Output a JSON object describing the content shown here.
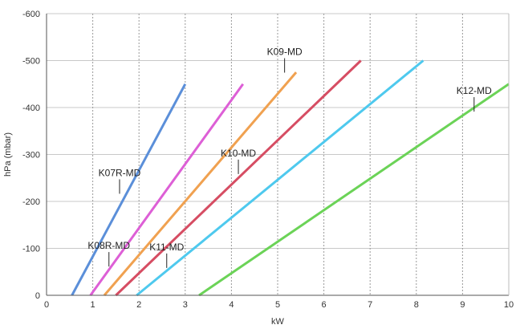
{
  "chart_data": {
    "type": "line",
    "title": "",
    "xlabel": "kW",
    "ylabel": "hPa (mbar)",
    "xlim": [
      0,
      10
    ],
    "ylim": [
      0,
      -600
    ],
    "x_ticks": [
      "0",
      "1",
      "2",
      "3",
      "4",
      "5",
      "6",
      "7",
      "8",
      "9",
      "10"
    ],
    "y_ticks": [
      "0",
      "-100",
      "-200",
      "-300",
      "-400",
      "-500",
      "-600"
    ],
    "grid": {
      "x": true,
      "y": true,
      "x_style": "dotted",
      "y_style": "solid"
    },
    "legend": "none",
    "series": [
      {
        "name": "K07R-MD",
        "color": "#5b8fd9",
        "points": [
          [
            0.55,
            0
          ],
          [
            3.0,
            -450
          ]
        ],
        "label_at": [
          1.58,
          -230
        ]
      },
      {
        "name": "K08R-MD",
        "color": "#dd5fd6",
        "points": [
          [
            0.95,
            0
          ],
          [
            4.25,
            -450
          ]
        ],
        "label_at": [
          1.35,
          -75
        ]
      },
      {
        "name": "K09-MD",
        "color": "#f0a150",
        "points": [
          [
            1.25,
            0
          ],
          [
            5.4,
            -475
          ]
        ],
        "label_at": [
          5.15,
          -488
        ]
      },
      {
        "name": "K10-MD",
        "color": "#d64d63",
        "points": [
          [
            1.5,
            0
          ],
          [
            6.8,
            -500
          ]
        ],
        "label_at": [
          4.15,
          -272
        ]
      },
      {
        "name": "K11-MD",
        "color": "#4ec9ee",
        "points": [
          [
            1.95,
            0
          ],
          [
            8.15,
            -500
          ]
        ],
        "label_at": [
          2.6,
          -72
        ]
      },
      {
        "name": "K12-MD",
        "color": "#6bd357",
        "points": [
          [
            3.3,
            0
          ],
          [
            10.0,
            -450
          ]
        ],
        "label_at": [
          9.25,
          -405
        ]
      }
    ]
  }
}
